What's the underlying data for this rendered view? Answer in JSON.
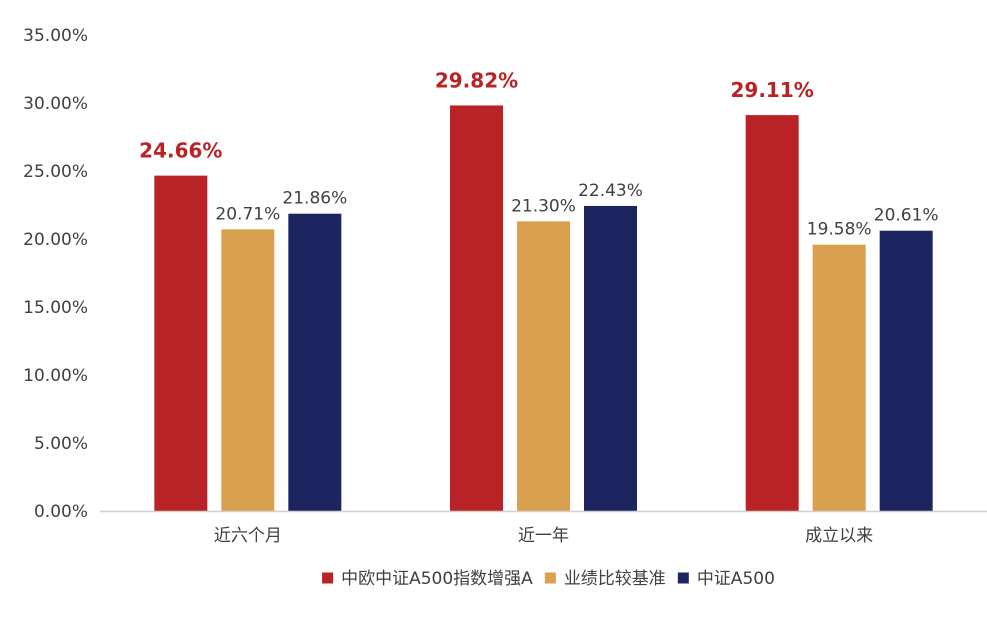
{
  "chart_data": {
    "type": "bar",
    "categories": [
      "近六个月",
      "近一年",
      "成立以来"
    ],
    "series": [
      {
        "name": "中欧中证A500指数增强A",
        "color": "#BA2325",
        "values": [
          24.66,
          29.82,
          29.11
        ],
        "labels": [
          "24.66%",
          "29.82%",
          "29.11%"
        ],
        "emphasis": true
      },
      {
        "name": "业绩比较基准",
        "color": "#D9A050",
        "values": [
          20.71,
          21.3,
          19.58
        ],
        "labels": [
          "20.71%",
          "21.30%",
          "19.58%"
        ],
        "emphasis": false
      },
      {
        "name": "中证A500",
        "color": "#1D2561",
        "values": [
          21.86,
          22.43,
          20.61
        ],
        "labels": [
          "21.86%",
          "22.43%",
          "20.61%"
        ],
        "emphasis": false
      }
    ],
    "ylim": [
      0,
      35
    ],
    "yticks": [
      0,
      5,
      10,
      15,
      20,
      25,
      30,
      35
    ],
    "ytick_labels": [
      "0.00%",
      "5.00%",
      "10.00%",
      "15.00%",
      "20.00%",
      "25.00%",
      "30.00%",
      "35.00%"
    ],
    "title": "",
    "xlabel": "",
    "ylabel": "",
    "grid": false,
    "legend_position": "bottom"
  }
}
